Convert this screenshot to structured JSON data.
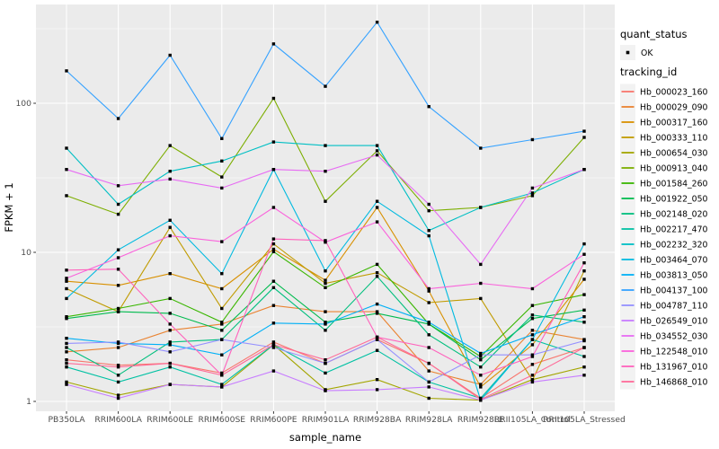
{
  "figure": {
    "x_axis_title": "sample_name",
    "y_axis_title": "FPKM + 1"
  },
  "legend": {
    "quant_status_title": "quant_status",
    "quant_ok_label": "OK",
    "quant_ok_marker": "black-point",
    "tracking_id_title": "tracking_id"
  },
  "colors": {
    "outer_background": "#FFFFFF",
    "panel_background": "#EBEBEB",
    "gridline": "#FFFFFF",
    "tick_text": "#4D4D4D",
    "axis_text": "#000000",
    "point_marker": "#000000",
    "legend_key_background": "#F2F2F2"
  },
  "chart_data": {
    "type": "line",
    "title": "",
    "xlabel": "sample_name",
    "ylabel": "FPKM + 1",
    "y_scale": "log10",
    "ylim": [
      1,
      460
    ],
    "y_major_ticks": [
      1,
      10,
      100
    ],
    "y_tick_labels": [
      "1",
      "10",
      "100"
    ],
    "y_minor_gridlines": [
      3.1623,
      31.623,
      316.23
    ],
    "grid": "major-and-minor-white-on-gray",
    "legend_position": "right",
    "point_marker": "small-black-point-on-every-vertex",
    "categories": [
      "PB350LA",
      "RRIM600LA",
      "RRIM600LE",
      "RRIM600SE",
      "RRIM600PE",
      "RRIM901LA",
      "RRIM928BA",
      "RRIM928LA",
      "RRIM928LE",
      "RRII105LA_Control",
      "RRII105LA_Stressed"
    ],
    "series": [
      {
        "name": "Hb_000023_160",
        "color": "#F8766D",
        "values": [
          1.9,
          1.75,
          1.8,
          1.55,
          2.5,
          1.8,
          2.6,
          1.8,
          1.05,
          1.77,
          2.3
        ]
      },
      {
        "name": "Hb_000029_090",
        "color": "#EA8331",
        "values": [
          2.15,
          2.3,
          3.0,
          3.3,
          4.4,
          4.0,
          4.0,
          1.6,
          1.3,
          3.0,
          2.6
        ]
      },
      {
        "name": "Hb_000317_160",
        "color": "#D89000",
        "values": [
          6.4,
          6.0,
          7.2,
          5.7,
          10.5,
          6.5,
          20,
          5.5,
          1.25,
          2.4,
          6.6
        ]
      },
      {
        "name": "Hb_000333_110",
        "color": "#C09B00",
        "values": [
          5.7,
          4.0,
          14.7,
          4.2,
          11.4,
          6.2,
          7.3,
          4.6,
          4.9,
          1.39,
          7.5
        ]
      },
      {
        "name": "Hb_000654_030",
        "color": "#A3A500",
        "values": [
          1.35,
          1.1,
          1.3,
          1.25,
          2.4,
          1.2,
          1.4,
          1.05,
          1.02,
          1.4,
          1.7
        ]
      },
      {
        "name": "Hb_000913_040",
        "color": "#7CAE00",
        "values": [
          24,
          18,
          52,
          32,
          108,
          22,
          48,
          19,
          20,
          24,
          59
        ]
      },
      {
        "name": "Hb_001584_260",
        "color": "#39B600",
        "values": [
          3.7,
          4.2,
          4.9,
          3.4,
          10.1,
          5.8,
          8.3,
          3.3,
          2.0,
          4.4,
          5.2
        ]
      },
      {
        "name": "Hb_001922_050",
        "color": "#00BB4E",
        "values": [
          3.6,
          4.0,
          3.9,
          3.0,
          6.4,
          3.4,
          3.9,
          3.3,
          1.9,
          3.6,
          4.1
        ]
      },
      {
        "name": "Hb_002148_020",
        "color": "#00BF7D",
        "values": [
          2.3,
          1.5,
          2.5,
          2.6,
          5.8,
          3.0,
          6.9,
          2.8,
          1.7,
          3.8,
          3.4
        ]
      },
      {
        "name": "Hb_002217_470",
        "color": "#00C1A3",
        "values": [
          1.7,
          1.35,
          1.7,
          1.3,
          2.4,
          1.55,
          2.2,
          1.35,
          1.05,
          2.6,
          2.0
        ]
      },
      {
        "name": "Hb_002232_320",
        "color": "#00BFC4",
        "values": [
          50,
          21,
          35,
          41,
          55,
          52,
          52,
          14,
          20,
          25,
          36
        ]
      },
      {
        "name": "Hb_003464_070",
        "color": "#00BAE0",
        "values": [
          4.9,
          10.4,
          16.4,
          7.2,
          36,
          7.5,
          22,
          12.9,
          1.02,
          2.6,
          11.4
        ]
      },
      {
        "name": "Hb_003813_050",
        "color": "#00B0F6",
        "values": [
          2.65,
          2.45,
          2.4,
          2.05,
          3.35,
          3.3,
          4.5,
          3.4,
          2.1,
          2.8,
          3.7
        ]
      },
      {
        "name": "Hb_004137_100",
        "color": "#35A2FF",
        "values": [
          165,
          79,
          210,
          58,
          250,
          130,
          350,
          95,
          50,
          57,
          65
        ]
      },
      {
        "name": "Hb_004787_110",
        "color": "#9590FF",
        "values": [
          2.45,
          2.5,
          2.15,
          2.6,
          2.3,
          1.8,
          2.6,
          1.35,
          2.05,
          2.05,
          2.55
        ]
      },
      {
        "name": "Hb_026549_010",
        "color": "#C77CFF",
        "values": [
          1.3,
          1.05,
          1.3,
          1.25,
          1.6,
          1.18,
          1.2,
          1.25,
          1.02,
          1.35,
          1.5
        ]
      },
      {
        "name": "Hb_034552_030",
        "color": "#E76BF3",
        "values": [
          36,
          28,
          31,
          27,
          36,
          35,
          45,
          21,
          8.3,
          27,
          36
        ]
      },
      {
        "name": "Hb_122548_010",
        "color": "#FA62DB",
        "values": [
          6.7,
          9.2,
          12.9,
          11.8,
          20,
          11.7,
          16,
          5.7,
          6.2,
          5.7,
          9.7
        ]
      },
      {
        "name": "Hb_131967_010",
        "color": "#FF62BC",
        "values": [
          7.6,
          7.7,
          3.3,
          1.5,
          12.3,
          12,
          2.7,
          2.3,
          1.5,
          2.0,
          8.5
        ]
      },
      {
        "name": "Hb_146868_010",
        "color": "#FF6A98",
        "values": [
          1.8,
          1.7,
          1.8,
          1.5,
          2.4,
          1.9,
          2.7,
          1.8,
          1.03,
          1.5,
          2.3
        ]
      }
    ]
  }
}
